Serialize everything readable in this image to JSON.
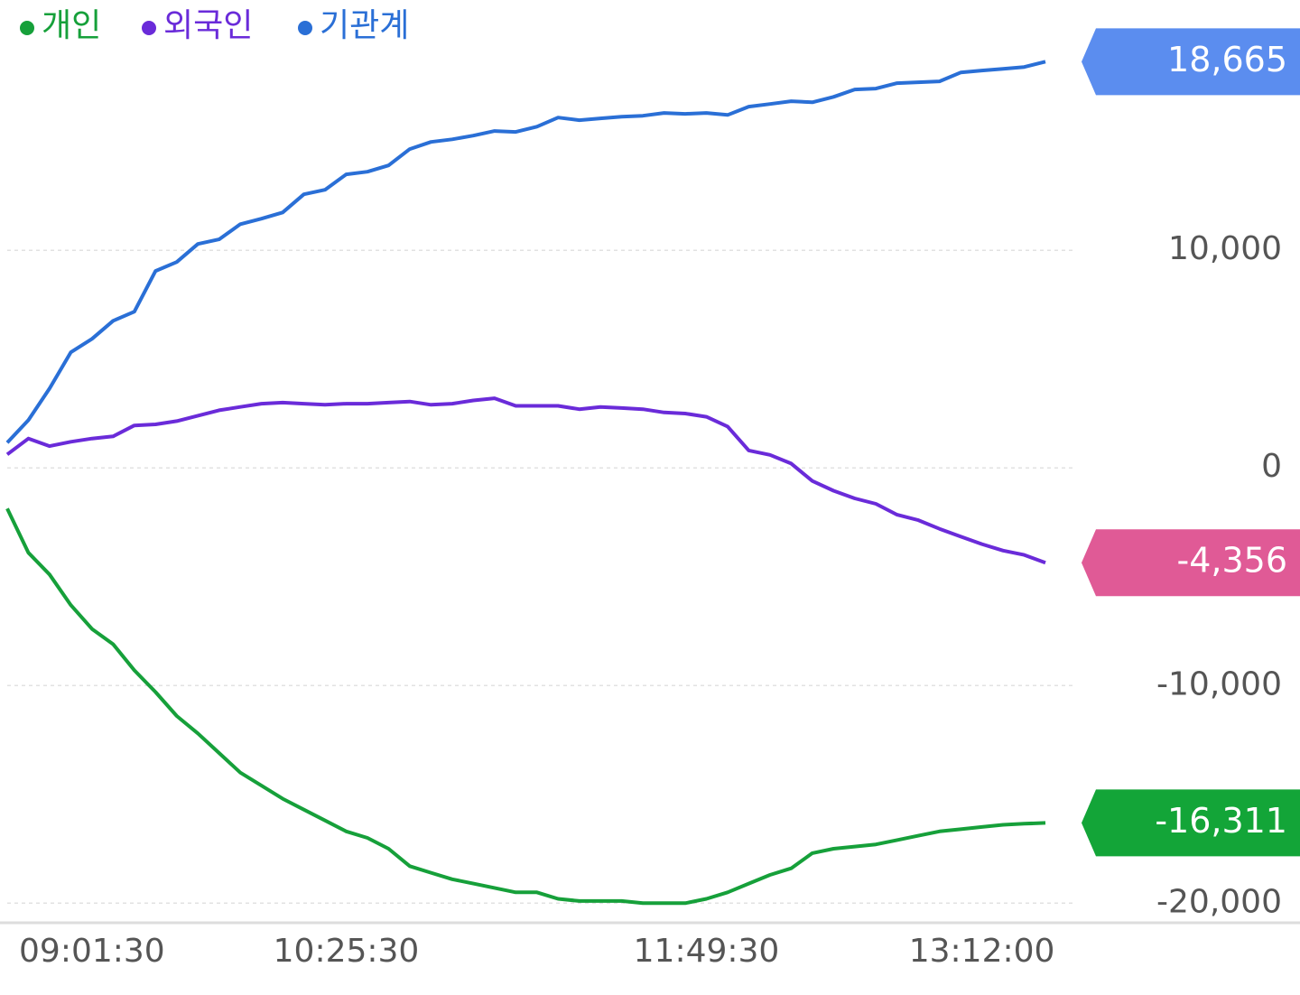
{
  "chart_data": {
    "type": "line",
    "categories": [
      null,
      null,
      null,
      null,
      "09:01:30",
      null,
      null,
      null,
      null,
      null,
      null,
      null,
      null,
      null,
      null,
      null,
      "10:25:30",
      null,
      null,
      null,
      null,
      null,
      null,
      null,
      null,
      null,
      null,
      null,
      null,
      null,
      null,
      null,
      null,
      "11:49:30",
      null,
      null,
      null,
      null,
      null,
      null,
      null,
      null,
      null,
      null,
      null,
      null,
      "13:12:00",
      null,
      null,
      null
    ],
    "series": [
      {
        "name": "개인",
        "color": "#16a03a",
        "label_color": "#13a538",
        "end_label": "-16,311",
        "values": [
          -1870,
          -3900,
          -4900,
          -6300,
          -7400,
          -8100,
          -9300,
          -10300,
          -11400,
          -12200,
          -13100,
          -14000,
          -14600,
          -15200,
          -15700,
          -16200,
          -16700,
          -17000,
          -17500,
          -18300,
          -18600,
          -18900,
          -19100,
          -19300,
          -19500,
          -19500,
          -19800,
          -19900,
          -19900,
          -19900,
          -20000,
          -20000,
          -20000,
          -19800,
          -19500,
          -19100,
          -18700,
          -18400,
          -17700,
          -17500,
          -17400,
          -17300,
          -17100,
          -16900,
          -16700,
          -16600,
          -16500,
          -16400,
          -16350,
          -16311
        ]
      },
      {
        "name": "외국인",
        "color": "#6a2bd9",
        "label_color": "#e05a96",
        "end_label": "-4,356",
        "values": [
          620,
          1350,
          1000,
          1200,
          1350,
          1450,
          1950,
          2000,
          2150,
          2400,
          2650,
          2800,
          2950,
          3000,
          2950,
          2900,
          2950,
          2950,
          3000,
          3050,
          2900,
          2950,
          3100,
          3200,
          2850,
          2850,
          2850,
          2700,
          2800,
          2750,
          2700,
          2550,
          2500,
          2350,
          1900,
          800,
          600,
          200,
          -600,
          -1050,
          -1400,
          -1650,
          -2150,
          -2400,
          -2800,
          -3150,
          -3500,
          -3800,
          -4000,
          -4356
        ]
      },
      {
        "name": "기관계",
        "color": "#2a6fd6",
        "label_color": "#5b8def",
        "end_label": "18,665",
        "values": [
          1160,
          2200,
          3650,
          5310,
          5930,
          6760,
          7180,
          9050,
          9460,
          10290,
          10500,
          11200,
          11450,
          11740,
          12570,
          12780,
          13490,
          13610,
          13900,
          14650,
          14980,
          15100,
          15270,
          15480,
          15440,
          15680,
          16100,
          15980,
          16060,
          16140,
          16180,
          16310,
          16270,
          16310,
          16220,
          16600,
          16720,
          16850,
          16800,
          17050,
          17390,
          17430,
          17680,
          17720,
          17760,
          18170,
          18260,
          18340,
          18420,
          18665
        ]
      }
    ],
    "ylim": [
      -20900,
      21500
    ],
    "yticks": [
      {
        "value": -20000,
        "label": "-20,000"
      },
      {
        "value": -10000,
        "label": "-10,000"
      },
      0,
      {
        "value": 10000,
        "label": "10,000"
      }
    ],
    "grid": true
  }
}
